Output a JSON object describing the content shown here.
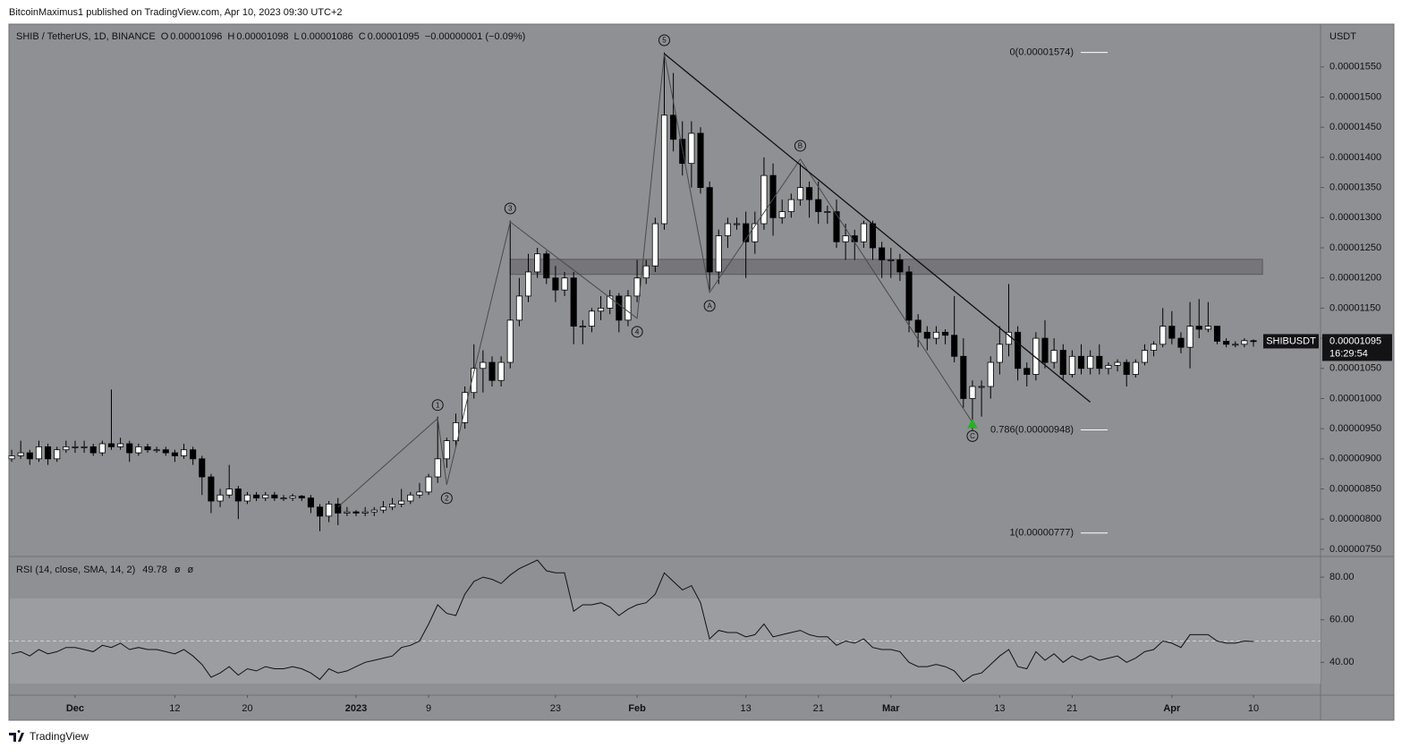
{
  "header": {
    "text": "BitcoinMaximus1 published on TradingView.com, Apr 10, 2023 09:30 UTC+2"
  },
  "footer": {
    "text": "TradingView"
  },
  "chart_data": {
    "type": "candlestick",
    "title": "SHIB / TetherUS, 1D, BINANCE",
    "ohlc_legend": [
      {
        "key": "O",
        "value": "0.00001096"
      },
      {
        "key": "H",
        "value": "0.00001098"
      },
      {
        "key": "L",
        "value": "0.00001086"
      },
      {
        "key": "C",
        "value": "0.00001095"
      }
    ],
    "change": "−0.00000001 (−0.09%)",
    "up_color": "#ffffff",
    "down_color": "#000000",
    "background": "#8f9094",
    "open": [
      9e-06,
      9.05e-06,
      9.1e-06,
      9e-06,
      9.2e-06,
      9e-06,
      9.15e-06,
      9.2e-06,
      9.2e-06,
      9.2e-06,
      9.1e-06,
      9.25e-06,
      9.2e-06,
      9.25e-06,
      9.1e-06,
      9.2e-06,
      9.15e-06,
      9.15e-06,
      9.1e-06,
      9.05e-06,
      9.15e-06,
      9e-06,
      8.7e-06,
      8.3e-06,
      8.4e-06,
      8.5e-06,
      8.3e-06,
      8.4e-06,
      8.35e-06,
      8.4e-06,
      8.35e-06,
      8.35e-06,
      8.38e-06,
      8.35e-06,
      8.2e-06,
      8.05e-06,
      8.25e-06,
      8.1e-06,
      8.12e-06,
      8.1e-06,
      8.12e-06,
      8.15e-06,
      8.2e-06,
      8.25e-06,
      8.3e-06,
      8.4e-06,
      8.45e-06,
      8.7e-06,
      9e-06,
      9.3e-06,
      9.6e-06,
      1.01e-05,
      1.05e-05,
      1.06e-05,
      1.03e-05,
      1.06e-05,
      1.13e-05,
      1.17e-05,
      1.21e-05,
      1.24e-05,
      1.2e-05,
      1.18e-05,
      1.2e-05,
      1.12e-05,
      1.12e-05,
      1.145e-05,
      1.15e-05,
      1.17e-05,
      1.13e-05,
      1.17e-05,
      1.2e-05,
      1.22e-05,
      1.29e-05,
      1.47e-05,
      1.43e-05,
      1.39e-05,
      1.44e-05,
      1.35e-05,
      1.21e-05,
      1.27e-05,
      1.29e-05,
      1.29e-05,
      1.26e-05,
      1.29e-05,
      1.37e-05,
      1.3e-05,
      1.31e-05,
      1.33e-05,
      1.35e-05,
      1.33e-05,
      1.31e-05,
      1.31e-05,
      1.26e-05,
      1.27e-05,
      1.26e-05,
      1.29e-05,
      1.25e-05,
      1.23e-05,
      1.23e-05,
      1.21e-05,
      1.13e-05,
      1.11e-05,
      1.1e-05,
      1.11e-05,
      1.105e-05,
      1.07e-05,
      1e-05,
      1.02e-05,
      1.02e-05,
      1.06e-05,
      1.09e-05,
      1.11e-05,
      1.05e-05,
      1.04e-05,
      1.1e-05,
      1.06e-05,
      1.08e-05,
      1.04e-05,
      1.07e-05,
      1.05e-05,
      1.07e-05,
      1.05e-05,
      1.055e-05,
      1.06e-05,
      1.04e-05,
      1.06e-05,
      1.08e-05,
      1.09e-05,
      1.12e-05,
      1.1e-05,
      1.085e-05,
      1.12e-05,
      1.115e-05,
      1.12e-05,
      1.095e-05,
      1.09e-05,
      1.09e-05,
      1.096e-05
    ],
    "high": [
      9.15e-06,
      9.3e-06,
      9.15e-06,
      9.3e-06,
      9.25e-06,
      9.2e-06,
      9.3e-06,
      9.3e-06,
      9.3e-06,
      9.25e-06,
      9.3e-06,
      1.015e-05,
      9.35e-06,
      9.3e-06,
      9.25e-06,
      9.25e-06,
      9.2e-06,
      9.2e-06,
      9.15e-06,
      9.25e-06,
      9.2e-06,
      9.05e-06,
      8.75e-06,
      8.5e-06,
      8.9e-06,
      8.55e-06,
      8.45e-06,
      8.45e-06,
      8.45e-06,
      8.45e-06,
      8.4e-06,
      8.42e-06,
      8.4e-06,
      8.4e-06,
      8.25e-06,
      8.3e-06,
      8.35e-06,
      8.2e-06,
      8.15e-06,
      8.2e-06,
      8.2e-06,
      8.3e-06,
      8.35e-06,
      8.5e-06,
      8.45e-06,
      8.6e-06,
      8.75e-06,
      9.7e-06,
      9.35e-06,
      9.75e-06,
      1.02e-05,
      1.09e-05,
      1.08e-05,
      1.07e-05,
      1.07e-05,
      1.295e-05,
      1.2e-05,
      1.24e-05,
      1.25e-05,
      1.245e-05,
      1.22e-05,
      1.21e-05,
      1.21e-05,
      1.13e-05,
      1.15e-05,
      1.17e-05,
      1.18e-05,
      1.175e-05,
      1.18e-05,
      1.23e-05,
      1.23e-05,
      1.3e-05,
      1.574e-05,
      1.54e-05,
      1.46e-05,
      1.46e-05,
      1.45e-05,
      1.36e-05,
      1.28e-05,
      1.3e-05,
      1.3e-05,
      1.31e-05,
      1.31e-05,
      1.4e-05,
      1.39e-05,
      1.33e-05,
      1.34e-05,
      1.39e-05,
      1.36e-05,
      1.36e-05,
      1.32e-05,
      1.33e-05,
      1.29e-05,
      1.28e-05,
      1.295e-05,
      1.295e-05,
      1.26e-05,
      1.25e-05,
      1.24e-05,
      1.22e-05,
      1.14e-05,
      1.12e-05,
      1.12e-05,
      1.115e-05,
      1.17e-05,
      1.1e-05,
      1.03e-05,
      1.03e-05,
      1.07e-05,
      1.12e-05,
      1.19e-05,
      1.12e-05,
      1.06e-05,
      1.11e-05,
      1.13e-05,
      1.1e-05,
      1.09e-05,
      1.08e-05,
      1.09e-05,
      1.08e-05,
      1.09e-05,
      1.06e-05,
      1.065e-05,
      1.065e-05,
      1.065e-05,
      1.09e-05,
      1.095e-05,
      1.15e-05,
      1.145e-05,
      1.11e-05,
      1.16e-05,
      1.165e-05,
      1.16e-05,
      1.12e-05,
      1.1e-05,
      1.095e-05,
      1.1e-05,
      1.098e-05
    ],
    "low": [
      8.95e-06,
      9e-06,
      8.9e-06,
      8.95e-06,
      8.9e-06,
      8.95e-06,
      9.1e-06,
      9.1e-06,
      9.1e-06,
      9.05e-06,
      9.05e-06,
      9.15e-06,
      9.15e-06,
      8.95e-06,
      9.05e-06,
      9.1e-06,
      9.1e-06,
      9.05e-06,
      8.95e-06,
      9e-06,
      8.9e-06,
      8.4e-06,
      8.1e-06,
      8.2e-06,
      8.35e-06,
      8e-06,
      8.25e-06,
      8.3e-06,
      8.3e-06,
      8.3e-06,
      8.3e-06,
      8.3e-06,
      8.3e-06,
      8.1e-06,
      7.8e-06,
      7.95e-06,
      7.9e-06,
      8.05e-06,
      8.05e-06,
      8.05e-06,
      8.05e-06,
      8.1e-06,
      8.15e-06,
      8.2e-06,
      8.25e-06,
      8.35e-06,
      8.4e-06,
      8.6e-06,
      8.85e-06,
      9.2e-06,
      9.5e-06,
      1e-05,
      1.01e-05,
      1.02e-05,
      1.02e-05,
      1.05e-05,
      1.12e-05,
      1.16e-05,
      1.2e-05,
      1.19e-05,
      1.16e-05,
      1.17e-05,
      1.09e-05,
      1.09e-05,
      1.11e-05,
      1.13e-05,
      1.14e-05,
      1.11e-05,
      1.12e-05,
      1.16e-05,
      1.19e-05,
      1.21e-05,
      1.28e-05,
      1.41e-05,
      1.37e-05,
      1.35e-05,
      1.34e-05,
      1.18e-05,
      1.19e-05,
      1.25e-05,
      1.28e-05,
      1.2e-05,
      1.24e-05,
      1.28e-05,
      1.27e-05,
      1.29e-05,
      1.3e-05,
      1.32e-05,
      1.3e-05,
      1.29e-05,
      1.29e-05,
      1.25e-05,
      1.23e-05,
      1.23e-05,
      1.25e-05,
      1.23e-05,
      1.2e-05,
      1.2e-05,
      1.195e-05,
      1.11e-05,
      1.085e-05,
      1.08e-05,
      1.09e-05,
      1.09e-05,
      1.06e-05,
      9.85e-06,
      9.48e-06,
      9.7e-06,
      1e-05,
      1.04e-05,
      1.07e-05,
      1.03e-05,
      1.02e-05,
      1.03e-05,
      1.05e-05,
      1.05e-05,
      1.03e-05,
      1.035e-05,
      1.04e-05,
      1.04e-05,
      1.04e-05,
      1.04e-05,
      1.045e-05,
      1.02e-05,
      1.035e-05,
      1.055e-05,
      1.07e-05,
      1.085e-05,
      1.09e-05,
      1.075e-05,
      1.05e-05,
      1.1e-05,
      1.11e-05,
      1.09e-05,
      1.085e-05,
      1.085e-05,
      1.085e-05,
      1.086e-05
    ],
    "close": [
      9.05e-06,
      9.1e-06,
      9e-06,
      9.2e-06,
      9e-06,
      9.15e-06,
      9.2e-06,
      9.2e-06,
      9.2e-06,
      9.1e-06,
      9.25e-06,
      9.2e-06,
      9.25e-06,
      9.1e-06,
      9.2e-06,
      9.15e-06,
      9.15e-06,
      9.1e-06,
      9.05e-06,
      9.15e-06,
      9e-06,
      8.7e-06,
      8.3e-06,
      8.4e-06,
      8.5e-06,
      8.3e-06,
      8.4e-06,
      8.35e-06,
      8.4e-06,
      8.35e-06,
      8.35e-06,
      8.38e-06,
      8.35e-06,
      8.2e-06,
      8.05e-06,
      8.25e-06,
      8.1e-06,
      8.12e-06,
      8.1e-06,
      8.12e-06,
      8.15e-06,
      8.2e-06,
      8.25e-06,
      8.3e-06,
      8.4e-06,
      8.45e-06,
      8.7e-06,
      9e-06,
      9.3e-06,
      9.6e-06,
      1.01e-05,
      1.05e-05,
      1.06e-05,
      1.03e-05,
      1.06e-05,
      1.13e-05,
      1.17e-05,
      1.21e-05,
      1.24e-05,
      1.2e-05,
      1.18e-05,
      1.2e-05,
      1.12e-05,
      1.12e-05,
      1.145e-05,
      1.15e-05,
      1.17e-05,
      1.13e-05,
      1.17e-05,
      1.2e-05,
      1.22e-05,
      1.29e-05,
      1.47e-05,
      1.43e-05,
      1.39e-05,
      1.44e-05,
      1.35e-05,
      1.21e-05,
      1.27e-05,
      1.29e-05,
      1.29e-05,
      1.26e-05,
      1.29e-05,
      1.37e-05,
      1.3e-05,
      1.31e-05,
      1.33e-05,
      1.35e-05,
      1.33e-05,
      1.31e-05,
      1.31e-05,
      1.26e-05,
      1.27e-05,
      1.26e-05,
      1.29e-05,
      1.25e-05,
      1.23e-05,
      1.23e-05,
      1.21e-05,
      1.13e-05,
      1.11e-05,
      1.1e-05,
      1.11e-05,
      1.105e-05,
      1.07e-05,
      1e-05,
      1.02e-05,
      1.02e-05,
      1.06e-05,
      1.09e-05,
      1.11e-05,
      1.05e-05,
      1.04e-05,
      1.1e-05,
      1.06e-05,
      1.08e-05,
      1.04e-05,
      1.07e-05,
      1.05e-05,
      1.07e-05,
      1.05e-05,
      1.055e-05,
      1.06e-05,
      1.04e-05,
      1.06e-05,
      1.08e-05,
      1.09e-05,
      1.12e-05,
      1.1e-05,
      1.085e-05,
      1.12e-05,
      1.115e-05,
      1.12e-05,
      1.095e-05,
      1.09e-05,
      1.09e-05,
      1.096e-05,
      1.095e-05
    ],
    "xlim": [
      -0.3,
      144.4
    ],
    "xticks": [
      {
        "value": 7,
        "label": "Dec"
      },
      {
        "value": 18,
        "label": "12"
      },
      {
        "value": 26,
        "label": "20"
      },
      {
        "value": 38,
        "label": "2023"
      },
      {
        "value": 46,
        "label": "9"
      },
      {
        "value": 60,
        "label": "23"
      },
      {
        "value": 69,
        "label": "Feb"
      },
      {
        "value": 81,
        "label": "13"
      },
      {
        "value": 89,
        "label": "21"
      },
      {
        "value": 97,
        "label": "Mar"
      },
      {
        "value": 109,
        "label": "13"
      },
      {
        "value": 117,
        "label": "21"
      },
      {
        "value": 128,
        "label": "Apr"
      },
      {
        "value": 137,
        "label": "10"
      }
    ],
    "ylim": [
      7.38e-06,
      1.621e-05
    ],
    "y_unit": "USDT",
    "yticks": [
      {
        "value": 7.5e-06,
        "label": "0.00000750"
      },
      {
        "value": 8e-06,
        "label": "0.00000800"
      },
      {
        "value": 8.5e-06,
        "label": "0.00000850"
      },
      {
        "value": 9e-06,
        "label": "0.00000900"
      },
      {
        "value": 9.5e-06,
        "label": "0.00000950"
      },
      {
        "value": 1e-05,
        "label": "0.00001000"
      },
      {
        "value": 1.05e-05,
        "label": "0.00001050"
      },
      {
        "value": 1.1e-05,
        "label": "0.00001100"
      },
      {
        "value": 1.15e-05,
        "label": "0.00001150"
      },
      {
        "value": 1.2e-05,
        "label": "0.00001200"
      },
      {
        "value": 1.25e-05,
        "label": "0.00001250"
      },
      {
        "value": 1.3e-05,
        "label": "0.00001300"
      },
      {
        "value": 1.35e-05,
        "label": "0.00001350"
      },
      {
        "value": 1.4e-05,
        "label": "0.00001400"
      },
      {
        "value": 1.45e-05,
        "label": "0.00001450"
      },
      {
        "value": 1.5e-05,
        "label": "0.00001500"
      },
      {
        "value": 1.55e-05,
        "label": "0.00001550"
      }
    ],
    "price_tag": {
      "symbol": "SHIBUSDT",
      "value": "0.00001095",
      "countdown": "16:29:54"
    },
    "waves": {
      "x": [
        36,
        47,
        48,
        55,
        69,
        72,
        77,
        87,
        106
      ],
      "y": [
        8.2e-06,
        9.67e-06,
        8.57e-06,
        1.293e-05,
        1.133e-05,
        1.572e-05,
        1.176e-05,
        1.397e-05,
        9.6e-06
      ],
      "labels": [
        null,
        "1",
        "2",
        "3",
        "4",
        "5",
        "A",
        "B",
        "C"
      ],
      "color": "#4a4a4a"
    },
    "trendline": {
      "x": [
        72,
        119
      ],
      "y": [
        1.572e-05,
        9.94e-06
      ],
      "color": "#111111"
    },
    "zone": {
      "x": [
        55,
        138
      ],
      "y": [
        1.206e-05,
        1.231e-05
      ]
    },
    "fib": [
      {
        "label": "0(0.00001574)",
        "value": 1.574e-05
      },
      {
        "label": "0.786(0.00000948)",
        "value": 9.48e-06
      },
      {
        "label": "1(0.00000777)",
        "value": 7.77e-06
      }
    ],
    "markers": [
      {
        "x": 106,
        "y": 9.48e-06,
        "color": "#22b324"
      }
    ],
    "rsi": {
      "title": "RSI (14, close, SMA, 14, 2)",
      "value_label": "49.78",
      "na": [
        "ø",
        "ø"
      ],
      "color": "#111111",
      "ylim": [
        24.6,
        89.7
      ],
      "band": [
        30,
        70
      ],
      "midline": 50,
      "yticks": [
        {
          "value": 80,
          "label": "80.00"
        },
        {
          "value": 60,
          "label": "60.00"
        },
        {
          "value": 40,
          "label": "40.00"
        }
      ],
      "values": [
        44,
        45,
        43,
        46,
        44,
        45,
        47,
        47,
        46,
        45,
        48,
        47,
        49,
        46,
        47,
        46,
        46,
        45,
        44,
        46,
        43,
        39,
        33,
        35,
        38,
        34,
        37,
        36,
        38,
        37,
        37,
        38,
        37,
        35,
        32,
        37,
        35,
        36,
        38,
        40,
        41,
        42,
        43,
        47,
        48,
        50,
        58,
        67,
        63,
        62,
        72,
        78,
        80,
        79,
        77,
        81,
        84,
        86,
        88,
        83,
        82,
        82,
        64,
        67,
        67,
        68,
        66,
        62,
        65,
        67,
        68,
        72,
        82,
        78,
        74,
        76,
        68,
        51,
        55,
        54,
        54,
        52,
        53,
        58,
        52,
        53,
        54,
        55,
        53,
        52,
        52,
        48,
        50,
        49,
        51,
        47,
        46,
        46,
        45,
        40,
        38,
        38,
        39,
        38,
        36,
        31,
        34,
        35,
        39,
        43,
        46,
        38,
        37,
        45,
        41,
        44,
        40,
        43,
        41,
        43,
        41,
        42,
        43,
        40,
        42,
        45,
        46,
        50,
        49,
        47,
        53,
        53,
        53,
        50,
        49,
        49,
        50,
        49.78
      ]
    }
  }
}
